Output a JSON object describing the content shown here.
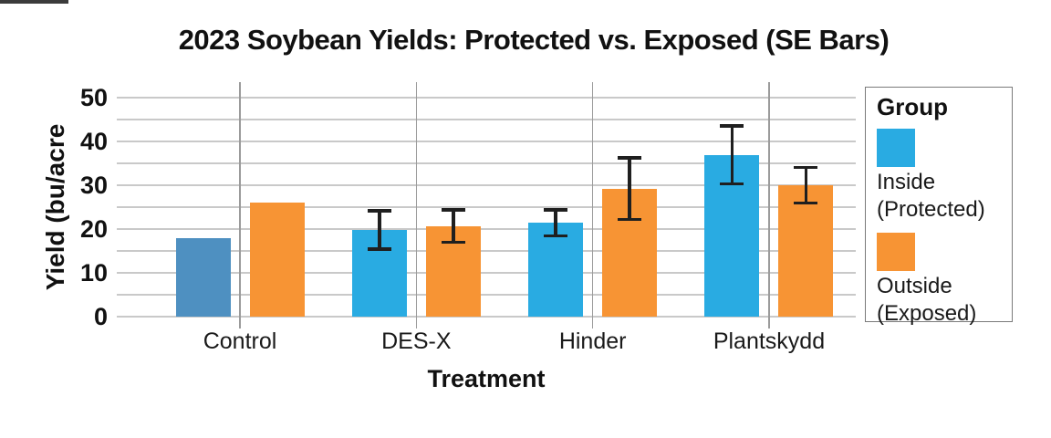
{
  "window": {
    "edge_strip_color": "#3b3b3b"
  },
  "chart_data": {
    "type": "bar",
    "title": "2023 Soybean Yields: Protected vs. Exposed (SE Bars)",
    "xlabel": "Treatment",
    "ylabel": "Yield (bu/acre",
    "ylim": [
      0,
      50
    ],
    "y_ticks": [
      0,
      10,
      20,
      30,
      40,
      50
    ],
    "gridline_step": 5,
    "grid": true,
    "categories": [
      "Control",
      "DES-X",
      "Hinder",
      "Plantskydd"
    ],
    "series": [
      {
        "name": "Inside (Protected)",
        "color": "#29abe2",
        "bar_colors": [
          "#4e90c1",
          "#29abe2",
          "#29abe2",
          "#29abe2"
        ],
        "values": [
          18,
          19.8,
          21.4,
          36.9
        ],
        "se": [
          null,
          4.4,
          3.0,
          6.6
        ]
      },
      {
        "name": "Outside (Exposed)",
        "color": "#f79434",
        "bar_colors": [
          "#f79434",
          "#f79434",
          "#f79434",
          "#f79434"
        ],
        "values": [
          26,
          20.7,
          29.2,
          30.0
        ],
        "se": [
          null,
          3.7,
          7.0,
          4.1
        ]
      }
    ],
    "legend": {
      "title": "Group",
      "position": "right",
      "entries": [
        {
          "label": "Inside (Protected)",
          "color": "#29abe2"
        },
        {
          "label": "Outside (Exposed)",
          "color": "#f79434"
        }
      ]
    },
    "error_bar_color": "#1f1f1f",
    "gridline_color": "#c9c9c9",
    "category_line_color": "#9b9b9b"
  }
}
